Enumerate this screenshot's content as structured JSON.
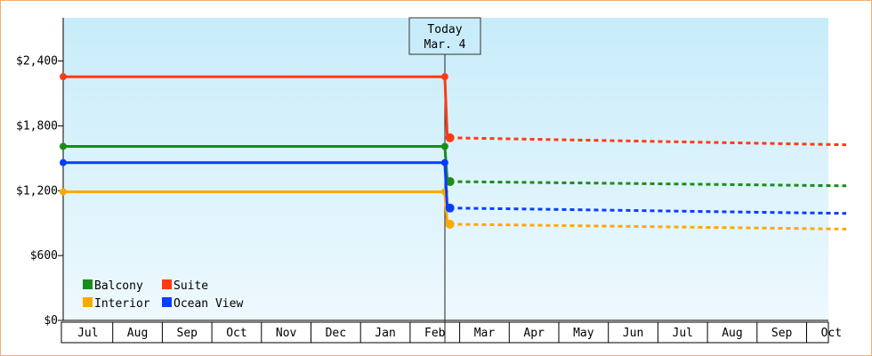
{
  "chart_data": {
    "type": "line",
    "title": "",
    "xlabel": "",
    "ylabel": "",
    "x_ticks": [
      "Jul",
      "Aug",
      "Sep",
      "Oct",
      "Nov",
      "Dec",
      "Jan",
      "Feb",
      "Mar",
      "Apr",
      "May",
      "Jun",
      "Jul",
      "Aug",
      "Sep",
      "Oct"
    ],
    "y_ticks": [
      "$0",
      "$600",
      "$1,200",
      "$1,800",
      "$2,400"
    ],
    "ylim": [
      0,
      2800
    ],
    "grid": false,
    "legend_position": "bottom-left",
    "today_marker": {
      "line1": "Today",
      "line2": "Mar. 4"
    },
    "series": [
      {
        "name": "Balcony",
        "color": "#1a8c1a",
        "historical": [
          [
            0,
            1610
          ],
          [
            7.7,
            1610
          ],
          [
            7.75,
            1285
          ]
        ],
        "projected": [
          [
            7.8,
            1285
          ],
          [
            15.8,
            1245
          ]
        ]
      },
      {
        "name": "Suite",
        "color": "#ff3a12",
        "historical": [
          [
            0,
            2255
          ],
          [
            7.7,
            2255
          ],
          [
            7.75,
            1690
          ]
        ],
        "projected": [
          [
            7.8,
            1690
          ],
          [
            15.8,
            1625
          ]
        ]
      },
      {
        "name": "Interior",
        "color": "#ffa800",
        "historical": [
          [
            0,
            1190
          ],
          [
            7.7,
            1190
          ],
          [
            7.75,
            890
          ]
        ],
        "projected": [
          [
            7.8,
            890
          ],
          [
            15.8,
            845
          ]
        ]
      },
      {
        "name": "Ocean View",
        "color": "#0a3cff",
        "historical": [
          [
            0,
            1460
          ],
          [
            7.7,
            1460
          ],
          [
            7.75,
            1040
          ]
        ],
        "projected": [
          [
            7.8,
            1040
          ],
          [
            15.8,
            990
          ]
        ]
      }
    ]
  }
}
